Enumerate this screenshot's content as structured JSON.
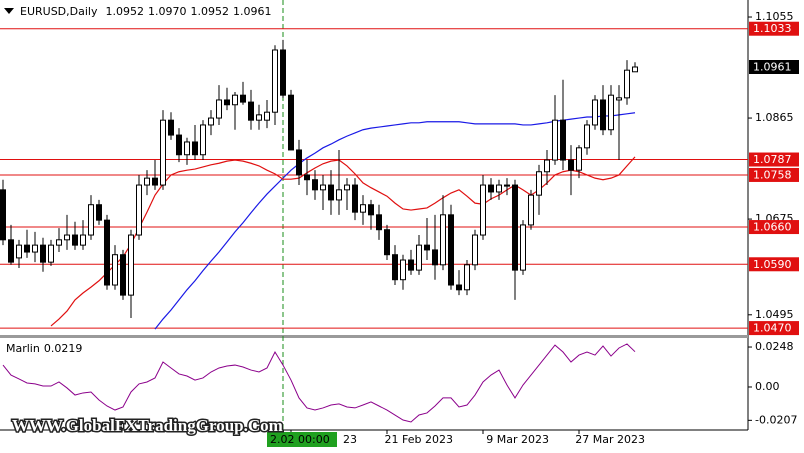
{
  "chart_data": {
    "type": "candlestick",
    "title": "EURUSD,Daily",
    "header_values": [
      "1.0952",
      "1.0970",
      "1.0952",
      "1.0961"
    ],
    "ylim": [
      1.0457,
      1.1087
    ],
    "yticks": [
      1.1055,
      1.0865,
      1.0675,
      1.0495
    ],
    "open": [
      1.073,
      1.0636,
      1.0602,
      1.0626,
      1.0613,
      1.0626,
      1.0594,
      1.0626,
      1.0636,
      1.0645,
      1.0626,
      1.0645,
      1.0702,
      1.0673,
      1.0551,
      1.0608,
      1.0532,
      1.0645,
      1.0739,
      1.0752,
      1.0739,
      1.0861,
      1.0833,
      1.0796,
      1.082,
      1.0796,
      1.0852,
      1.0865,
      1.0899,
      1.089,
      1.0908,
      1.0895,
      1.0861,
      1.0861,
      1.0876,
      1.0993,
      1.0908,
      1.0805,
      1.0758,
      1.0749,
      1.073,
      1.0739,
      1.0711,
      1.073,
      1.0739,
      1.0688,
      1.0702,
      1.0683,
      1.0655,
      1.0608,
      1.0561,
      1.0598,
      1.0579,
      1.0626,
      1.0617,
      1.0589,
      1.0683,
      1.0551,
      1.0542,
      1.0589,
      1.0645,
      1.0739,
      1.0726,
      1.0739,
      1.0739,
      1.0579,
      1.0664,
      1.072,
      1.0764,
      1.0786,
      1.0861,
      1.0786,
      1.0767,
      1.0809,
      1.0852,
      1.0899,
      1.0843,
      1.0899,
      1.0903,
      1.0952
    ],
    "high": [
      1.0749,
      1.0664,
      1.0636,
      1.0655,
      1.0651,
      1.064,
      1.0636,
      1.0658,
      1.0683,
      1.067,
      1.0673,
      1.072,
      1.0711,
      1.0683,
      1.0626,
      1.0617,
      1.0655,
      1.0758,
      1.0767,
      1.0786,
      1.088,
      1.0876,
      1.0846,
      1.0828,
      1.0852,
      1.0861,
      1.088,
      1.0927,
      1.0922,
      1.0914,
      1.0933,
      1.0918,
      1.089,
      1.0899,
      1.1002,
      1.1012,
      1.0918,
      1.0824,
      1.0786,
      1.0767,
      1.0758,
      1.0767,
      1.0805,
      1.0752,
      1.0752,
      1.072,
      1.0711,
      1.0702,
      1.0664,
      1.0626,
      1.0608,
      1.0617,
      1.0645,
      1.0677,
      1.0683,
      1.072,
      1.0702,
      1.0579,
      1.0598,
      1.0655,
      1.0758,
      1.0752,
      1.0749,
      1.0752,
      1.0749,
      1.0673,
      1.073,
      1.0777,
      1.0805,
      1.0908,
      1.0937,
      1.0814,
      1.0814,
      1.0861,
      1.0908,
      1.0927,
      1.0927,
      1.0927,
      1.0974,
      1.097
    ],
    "low": [
      1.0626,
      1.0589,
      1.0583,
      1.0602,
      1.0594,
      1.0576,
      1.0587,
      1.0613,
      1.0617,
      1.0617,
      1.0617,
      1.0636,
      1.0664,
      1.0542,
      1.0542,
      1.0523,
      1.0489,
      1.0636,
      1.072,
      1.073,
      1.073,
      1.0824,
      1.0782,
      1.0777,
      1.0786,
      1.0786,
      1.0833,
      1.0852,
      1.088,
      1.0843,
      1.089,
      1.0843,
      1.0843,
      1.0846,
      1.0852,
      1.0903,
      1.0805,
      1.0739,
      1.072,
      1.0711,
      1.0692,
      1.0683,
      1.0683,
      1.0692,
      1.0673,
      1.0664,
      1.0655,
      1.0636,
      1.0598,
      1.0551,
      1.0542,
      1.057,
      1.057,
      1.0598,
      1.0561,
      1.0579,
      1.0542,
      1.0532,
      1.0532,
      1.0579,
      1.0636,
      1.0711,
      1.0711,
      1.072,
      1.0523,
      1.057,
      1.0655,
      1.0683,
      1.0739,
      1.0777,
      1.0767,
      1.072,
      1.0752,
      1.0796,
      1.0843,
      1.0833,
      1.0833,
      1.0786,
      1.089,
      1.0952
    ],
    "close": [
      1.0636,
      1.0594,
      1.0626,
      1.0613,
      1.0626,
      1.0594,
      1.0626,
      1.0636,
      1.0645,
      1.0626,
      1.0645,
      1.0702,
      1.0673,
      1.0551,
      1.0608,
      1.0532,
      1.0645,
      1.0739,
      1.0752,
      1.0739,
      1.0861,
      1.0833,
      1.0796,
      1.082,
      1.0796,
      1.0852,
      1.0865,
      1.0899,
      1.089,
      1.0908,
      1.0895,
      1.0861,
      1.0871,
      1.0876,
      1.0993,
      1.0908,
      1.0805,
      1.0758,
      1.0749,
      1.073,
      1.0739,
      1.0711,
      1.073,
      1.0739,
      1.0688,
      1.0702,
      1.0683,
      1.0655,
      1.0608,
      1.0561,
      1.0598,
      1.0579,
      1.0626,
      1.0617,
      1.0589,
      1.0683,
      1.0551,
      1.0542,
      1.0589,
      1.0645,
      1.0739,
      1.0726,
      1.0739,
      1.0737,
      1.0579,
      1.0664,
      1.072,
      1.0764,
      1.0786,
      1.0861,
      1.0786,
      1.0767,
      1.0809,
      1.0852,
      1.0899,
      1.0843,
      1.0908,
      1.0903,
      1.0955,
      1.0961
    ],
    "lines": [
      {
        "color": "#1a1ae6",
        "values": [
          null,
          null,
          null,
          null,
          null,
          null,
          null,
          null,
          null,
          null,
          null,
          null,
          null,
          null,
          null,
          null,
          null,
          null,
          null,
          1.0468,
          1.0487,
          1.0504,
          1.0523,
          1.0542,
          1.0559,
          1.0578,
          1.0596,
          1.0613,
          1.0632,
          1.0651,
          1.0668,
          1.0687,
          1.0705,
          1.0722,
          1.0737,
          1.0752,
          1.0767,
          1.0779,
          1.079,
          1.0799,
          1.0809,
          1.0816,
          1.0824,
          1.0831,
          1.0837,
          1.0843,
          1.0846,
          1.0848,
          1.085,
          1.0852,
          1.0854,
          1.0856,
          1.0856,
          1.0858,
          1.0858,
          1.0858,
          1.0858,
          1.0858,
          1.0856,
          1.0854,
          1.0854,
          1.0854,
          1.0854,
          1.0854,
          1.0854,
          1.0852,
          1.0852,
          1.0854,
          1.0856,
          1.0859,
          1.0861,
          1.0863,
          1.0865,
          1.0867,
          1.0867,
          1.0869,
          1.0869,
          1.0871,
          1.0873,
          1.0875
        ]
      },
      {
        "color": "#e01010",
        "values": [
          null,
          null,
          null,
          null,
          null,
          null,
          1.0474,
          1.0487,
          1.0502,
          1.0523,
          1.0536,
          1.0547,
          1.0559,
          1.0574,
          1.0589,
          1.0604,
          1.0628,
          1.0658,
          1.0688,
          1.072,
          1.0741,
          1.0758,
          1.0764,
          1.0767,
          1.0769,
          1.0773,
          1.0777,
          1.078,
          1.0784,
          1.0786,
          1.0784,
          1.078,
          1.0775,
          1.0767,
          1.076,
          1.075,
          1.075,
          1.0752,
          1.0762,
          1.0771,
          1.0779,
          1.0784,
          1.0786,
          1.0775,
          1.076,
          1.0743,
          1.0734,
          1.0726,
          1.0718,
          1.0705,
          1.0694,
          1.0692,
          1.0694,
          1.0696,
          1.0705,
          1.0715,
          1.0724,
          1.073,
          1.0718,
          1.0705,
          1.0703,
          1.0713,
          1.072,
          1.073,
          1.0739,
          1.073,
          1.072,
          1.073,
          1.0743,
          1.0758,
          1.0764,
          1.0767,
          1.0764,
          1.0758,
          1.0752,
          1.0749,
          1.0752,
          1.0758,
          1.0775,
          1.0792
        ]
      }
    ],
    "levels": [
      {
        "value": 1.1033,
        "label": "1.1033"
      },
      {
        "value": 1.0787,
        "label": "1.0787"
      },
      {
        "value": 1.0758,
        "label": "1.0758"
      },
      {
        "value": 1.066,
        "label": "1.0660"
      },
      {
        "value": 1.059,
        "label": "1.0590"
      },
      {
        "value": 1.047,
        "label": "1.0470"
      }
    ],
    "level_color": "#e01010",
    "xticks": [
      {
        "value": 36,
        "label": "23"
      },
      {
        "value": 48,
        "label": "21 Feb 2023"
      },
      {
        "value": 60,
        "label": "9 Mar 2023"
      },
      {
        "value": 72,
        "label": "27 Mar 2023"
      }
    ],
    "crosshair": {
      "value": 35,
      "label": "2.02 00:00"
    },
    "indicator": {
      "name": "Marlin",
      "color": "#8b008b",
      "ylim": [
        -0.0267,
        0.0304
      ],
      "yticks": [
        0.0248,
        {
          "value": 0,
          "label": "0.00"
        },
        -0.0207
      ],
      "values": [
        0.0136,
        0.0074,
        0.005,
        0.0025,
        0.0019,
        0.0006,
        0.0006,
        0.0031,
        -0.0006,
        -0.005,
        -0.0037,
        -0.0031,
        -0.0081,
        -0.0118,
        -0.0143,
        -0.0124,
        -0.0031,
        0.0019,
        0.0031,
        0.0056,
        0.0155,
        0.0118,
        0.0081,
        0.0068,
        0.0043,
        0.0056,
        0.0093,
        0.0118,
        0.013,
        0.0136,
        0.0124,
        0.0105,
        0.0093,
        0.0118,
        0.0217,
        0.0136,
        0.0043,
        -0.0068,
        -0.013,
        -0.0143,
        -0.013,
        -0.0112,
        -0.0105,
        -0.0124,
        -0.013,
        -0.0112,
        -0.0093,
        -0.0118,
        -0.0143,
        -0.0174,
        -0.0205,
        -0.0217,
        -0.0174,
        -0.0161,
        -0.0118,
        -0.0068,
        -0.0068,
        -0.0124,
        -0.0112,
        -0.005,
        0.0031,
        0.0074,
        0.0105,
        0.0012,
        -0.0068,
        0.0012,
        0.0074,
        0.0136,
        0.0198,
        0.026,
        0.0217,
        0.0155,
        0.0198,
        0.0217,
        0.0198,
        0.0254,
        0.0192,
        0.0242,
        0.0267,
        0.0219
      ]
    },
    "watermark": "WWW.GlobalFXTradingGroup.Com"
  }
}
